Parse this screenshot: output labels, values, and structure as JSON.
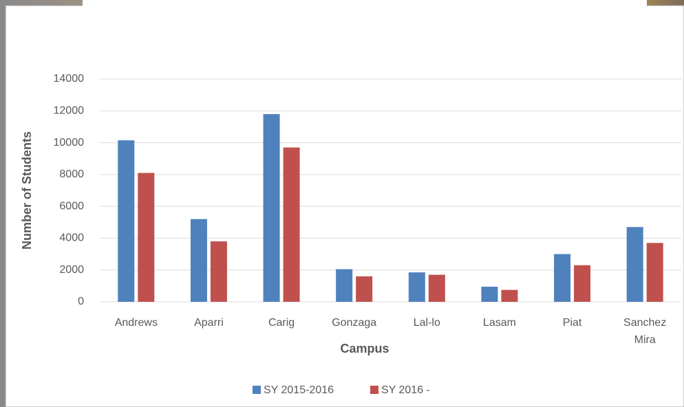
{
  "chart_data": {
    "type": "bar",
    "x_label": "Campus",
    "y_label": "Number of Students",
    "categories": [
      "Andrews",
      "Aparri",
      "Carig",
      "Gonzaga",
      "Lal-lo",
      "Lasam",
      "Piat",
      "Sanchez Mira"
    ],
    "series": [
      {
        "name": "SY 2015-2016",
        "color": "#4f81bd",
        "values": [
          10150,
          5200,
          11800,
          2050,
          1850,
          950,
          3000,
          4700
        ]
      },
      {
        "name": "SY 2016 -",
        "color": "#c0504d",
        "values": [
          8100,
          3800,
          9700,
          1600,
          1700,
          750,
          2300,
          3700
        ]
      }
    ],
    "ylim": [
      0,
      14000
    ],
    "yticks": [
      0,
      2000,
      4000,
      6000,
      8000,
      10000,
      12000,
      14000
    ],
    "grid": true,
    "legend": "bottom"
  }
}
